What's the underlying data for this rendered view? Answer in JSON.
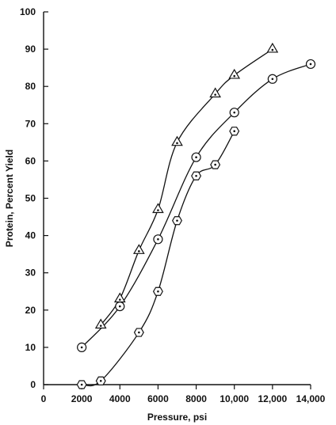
{
  "chart_data": {
    "type": "scatter",
    "title": "",
    "xlabel": "Pressure, psi",
    "ylabel": "Protein, Percent Yield",
    "xlim": [
      0,
      14000
    ],
    "ylim": [
      0,
      100
    ],
    "x_ticks": [
      0,
      2000,
      4000,
      6000,
      8000,
      10000,
      12000,
      14000
    ],
    "x_tick_labels": [
      "0",
      "2000",
      "4000",
      "6000",
      "8000",
      "10,000",
      "12,000",
      "14,000"
    ],
    "y_ticks": [
      0,
      10,
      20,
      30,
      40,
      50,
      60,
      70,
      80,
      90,
      100
    ],
    "y_tick_labels": [
      "0",
      "10",
      "20",
      "30",
      "40",
      "50",
      "60",
      "70",
      "80",
      "90",
      "100"
    ],
    "grid": false,
    "legend": "none",
    "series": [
      {
        "marker": "triangle",
        "x": [
          3000,
          4000,
          5000,
          6000,
          7000,
          9000,
          10000,
          12000
        ],
        "y": [
          16,
          23,
          36,
          47,
          65,
          78,
          83,
          90
        ]
      },
      {
        "marker": "circle",
        "x": [
          2000,
          4000,
          6000,
          8000,
          10000,
          12000,
          14000
        ],
        "y": [
          10,
          21,
          39,
          61,
          73,
          82,
          86
        ]
      },
      {
        "marker": "hexagon",
        "x": [
          2000,
          3000,
          5000,
          6000,
          7000,
          8000,
          9000,
          10000
        ],
        "y": [
          0,
          1,
          14,
          25,
          44,
          56,
          59,
          68
        ]
      }
    ]
  }
}
